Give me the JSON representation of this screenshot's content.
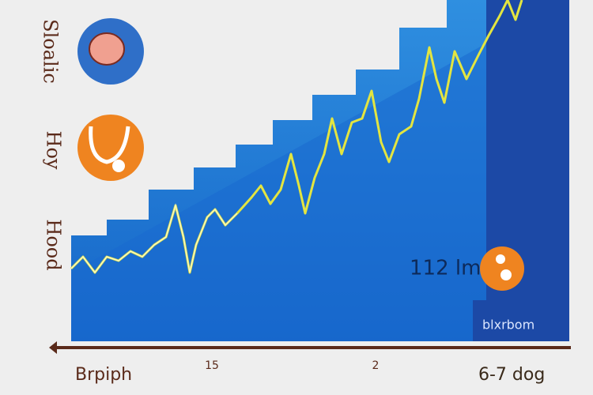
{
  "side_labels": [
    "Sloalic",
    "Hoy",
    "Hood"
  ],
  "annotation": "112 lm",
  "panel_label": "blxrbom",
  "bottom_labels": [
    "Brpiph",
    "15",
    "2",
    "6-7 dog"
  ]
}
